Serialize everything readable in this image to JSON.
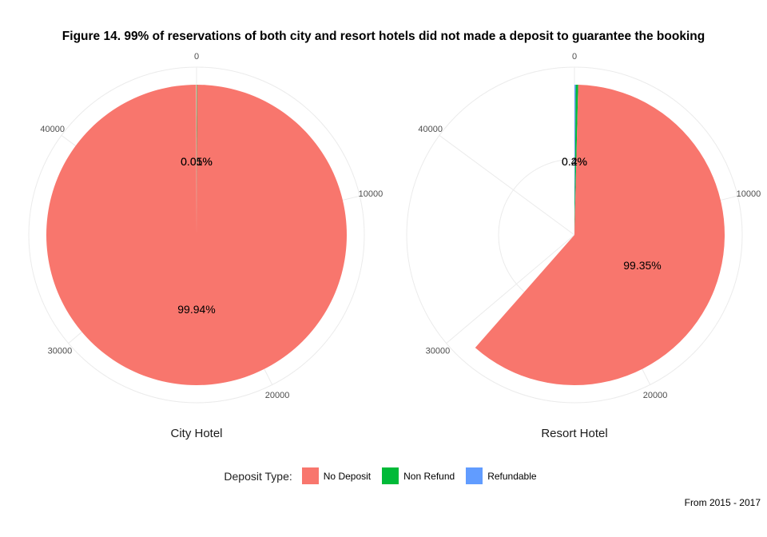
{
  "title": "Figure 14. 99% of reservations of both city and resort hotels did not made a deposit to guarantee the booking",
  "caption": "From 2015 - 2017",
  "legend": {
    "title": "Deposit Type:",
    "items": [
      {
        "label": "No Deposit",
        "color": "#F8766D"
      },
      {
        "label": "Non Refund",
        "color": "#00BA38"
      },
      {
        "label": "Refundable",
        "color": "#619CFF"
      }
    ]
  },
  "chart_data": [
    {
      "type": "pie",
      "panel_label": "City Hotel",
      "radial_axis_ticks": [
        "0",
        "10000",
        "20000",
        "30000",
        "40000"
      ],
      "axis_max": 47000,
      "series": [
        {
          "name": "No Deposit",
          "value": 46950,
          "label": "99.94%"
        },
        {
          "name": "Non Refund",
          "value": 24,
          "label": "0.05%"
        },
        {
          "name": "Refundable",
          "value": 4,
          "label": "0.01%"
        }
      ]
    },
    {
      "type": "pie",
      "panel_label": "Resort Hotel",
      "radial_axis_ticks": [
        "0",
        "10000",
        "20000",
        "30000",
        "40000"
      ],
      "axis_max": 47000,
      "series": [
        {
          "name": "No Deposit",
          "value": 28711,
          "label": "99.35%"
        },
        {
          "name": "Non Refund",
          "value": 124,
          "label": "0.4%"
        },
        {
          "name": "Refundable",
          "value": 64,
          "label": "0.2%"
        }
      ]
    }
  ]
}
